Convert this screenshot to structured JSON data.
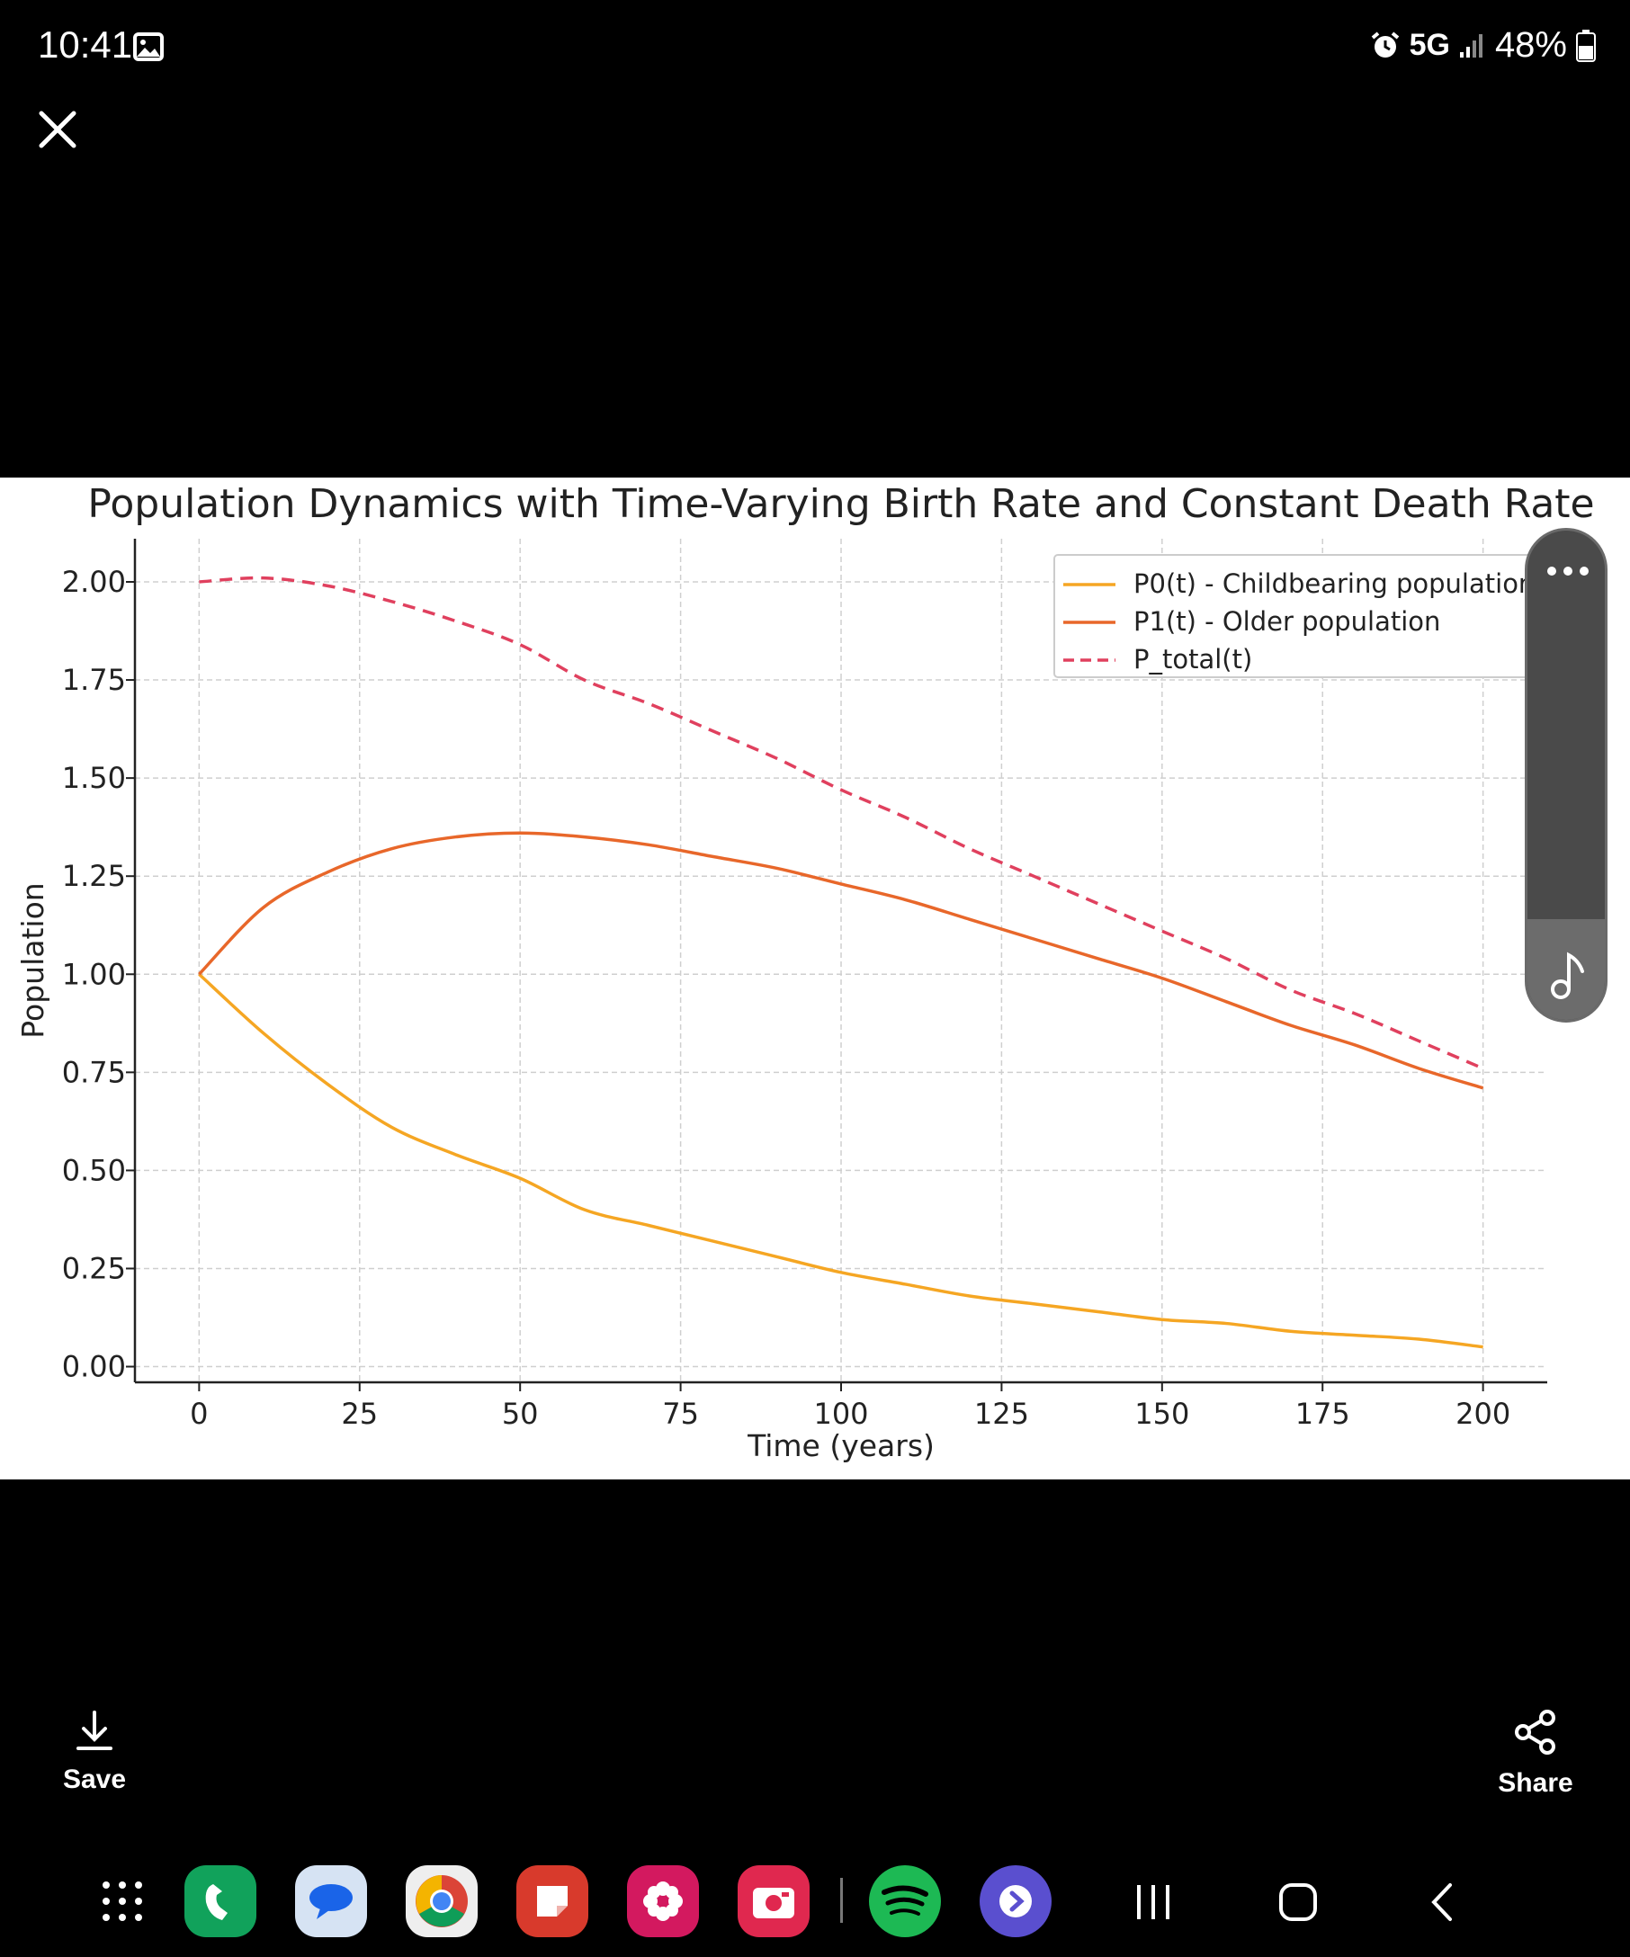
{
  "status_bar": {
    "time": "10:41",
    "network": "5G",
    "battery": "48%",
    "icons": [
      "gallery-icon",
      "alarm-icon",
      "signal-icon",
      "battery-icon"
    ]
  },
  "viewer": {
    "close_icon": "close-icon"
  },
  "chart_data": {
    "type": "line",
    "title": "Population Dynamics with Time-Varying Birth Rate and Constant Death Rate",
    "xlabel": "Time (years)",
    "ylabel": "Population",
    "xlim": [
      -10,
      210
    ],
    "ylim": [
      -0.04,
      2.11
    ],
    "xticks": [
      "0",
      "25",
      "50",
      "75",
      "100",
      "125",
      "150",
      "175",
      "200"
    ],
    "yticks": [
      "0.00",
      "0.25",
      "0.50",
      "0.75",
      "1.00",
      "1.25",
      "1.50",
      "1.75",
      "2.00"
    ],
    "grid": true,
    "legend_position": "top-right",
    "x": [
      0,
      10,
      20,
      30,
      40,
      50,
      60,
      70,
      80,
      90,
      100,
      110,
      120,
      130,
      140,
      150,
      160,
      170,
      180,
      190,
      200
    ],
    "series": [
      {
        "name": "P0(t) - Childbearing population",
        "color": "#f5a623",
        "style": "solid",
        "values": [
          1.0,
          0.85,
          0.72,
          0.61,
          0.54,
          0.48,
          0.4,
          0.36,
          0.32,
          0.28,
          0.24,
          0.21,
          0.18,
          0.16,
          0.14,
          0.12,
          0.11,
          0.09,
          0.08,
          0.07,
          0.05
        ]
      },
      {
        "name": "P1(t) - Older population",
        "color": "#e8672a",
        "style": "solid",
        "values": [
          1.0,
          1.17,
          1.26,
          1.32,
          1.35,
          1.36,
          1.35,
          1.33,
          1.3,
          1.27,
          1.23,
          1.19,
          1.14,
          1.09,
          1.04,
          0.99,
          0.93,
          0.87,
          0.82,
          0.76,
          0.71
        ]
      },
      {
        "name": "P_total(t)",
        "color": "#e0405e",
        "style": "dashed",
        "values": [
          2.0,
          2.01,
          1.99,
          1.95,
          1.9,
          1.84,
          1.75,
          1.69,
          1.62,
          1.55,
          1.47,
          1.4,
          1.32,
          1.25,
          1.18,
          1.11,
          1.04,
          0.96,
          0.9,
          0.83,
          0.76
        ]
      }
    ]
  },
  "actions": {
    "save_label": "Save",
    "share_label": "Share"
  },
  "dock": {
    "apps": [
      "app-drawer-icon",
      "phone-app-icon",
      "messages-app-icon",
      "chrome-app-icon",
      "notes-app-icon",
      "gallery-app-icon",
      "camera-app-icon",
      "spotify-app-icon",
      "samsung-internet-app-icon"
    ],
    "nav": [
      "recents-icon",
      "home-icon",
      "back-icon"
    ]
  }
}
